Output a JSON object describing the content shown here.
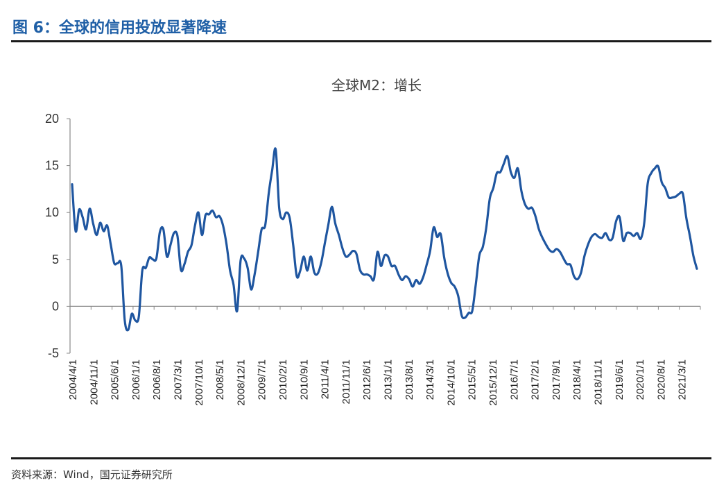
{
  "figure": {
    "title": "图 6：全球的信用投放显著降速",
    "source": "资料来源：Wind，国元证券研究所"
  },
  "chart_data": {
    "type": "line",
    "title": "全球M2：增长",
    "xlabel": "",
    "ylabel": "",
    "ylim": [
      -5,
      20
    ],
    "yticks": [
      -5,
      0,
      5,
      10,
      15,
      20
    ],
    "grid": false,
    "legend": "none",
    "line_color": "#1f56a0",
    "x_tick_labels": [
      "2004/4/1",
      "2004/11/1",
      "2005/6/1",
      "2006/1/1",
      "2006/8/1",
      "2007/3/1",
      "2007/10/1",
      "2008/5/1",
      "2008/12/1",
      "2009/7/1",
      "2010/2/1",
      "2010/9/1",
      "2011/4/1",
      "2011/11/1",
      "2012/6/1",
      "2013/1/1",
      "2013/8/1",
      "2014/3/1",
      "2014/10/1",
      "2015/5/1",
      "2015/12/1",
      "2016/7/1",
      "2017/2/1",
      "2017/9/1",
      "2018/4/1",
      "2018/11/1",
      "2019/6/1",
      "2020/1/1",
      "2020/8/1",
      "2021/3/1"
    ],
    "series": [
      {
        "values": [
          13.0,
          8.0,
          10.3,
          9.5,
          8.2,
          10.4,
          8.8,
          7.6,
          8.9,
          8.0,
          8.6,
          6.6,
          4.6,
          4.6,
          4.3,
          -1.5,
          -2.5,
          -0.8,
          -1.5,
          -1.1,
          3.8,
          4.1,
          5.2,
          5.0,
          5.1,
          7.9,
          8.2,
          5.3,
          6.5,
          7.8,
          7.5,
          3.9,
          4.5,
          5.8,
          6.5,
          8.6,
          10.0,
          7.6,
          9.7,
          9.8,
          10.2,
          9.5,
          9.6,
          8.6,
          6.6,
          3.8,
          2.3,
          -0.5,
          4.9,
          5.1,
          4.1,
          1.8,
          3.4,
          5.8,
          8.2,
          8.6,
          12.0,
          14.5,
          16.7,
          10.5,
          9.3,
          10.0,
          9.4,
          6.5,
          3.2,
          3.8,
          5.3,
          3.8,
          5.3,
          3.6,
          3.5,
          4.7,
          6.7,
          8.7,
          10.6,
          8.8,
          7.6,
          6.2,
          5.3,
          5.5,
          5.9,
          5.6,
          3.9,
          3.4,
          3.4,
          3.2,
          2.9,
          5.8,
          4.3,
          5.4,
          5.3,
          4.3,
          4.3,
          3.4,
          2.8,
          3.2,
          2.9,
          2.1,
          2.8,
          2.4,
          3.1,
          4.4,
          5.9,
          8.4,
          7.4,
          7.7,
          5.2,
          3.5,
          2.5,
          2.1,
          1.1,
          -1.0,
          -1.2,
          -0.7,
          -0.5,
          2.3,
          5.4,
          6.3,
          8.4,
          11.5,
          12.6,
          14.2,
          14.3,
          15.2,
          16.0,
          14.3,
          13.7,
          14.7,
          12.3,
          10.9,
          10.4,
          10.5,
          9.6,
          8.2,
          7.3,
          6.6,
          6.0,
          5.8,
          6.1,
          5.8,
          5.1,
          4.5,
          4.4,
          3.2,
          2.9,
          3.6,
          5.4,
          6.6,
          7.4,
          7.7,
          7.4,
          7.3,
          7.8,
          7.1,
          7.3,
          9.1,
          9.5,
          7.0,
          7.8,
          7.8,
          7.5,
          7.8,
          7.2,
          8.9,
          13.1,
          14.2,
          14.7,
          14.9,
          13.2,
          12.6,
          11.6,
          11.6,
          11.7,
          12.0,
          12.0,
          9.4,
          7.5,
          5.4,
          4.0
        ]
      }
    ]
  }
}
